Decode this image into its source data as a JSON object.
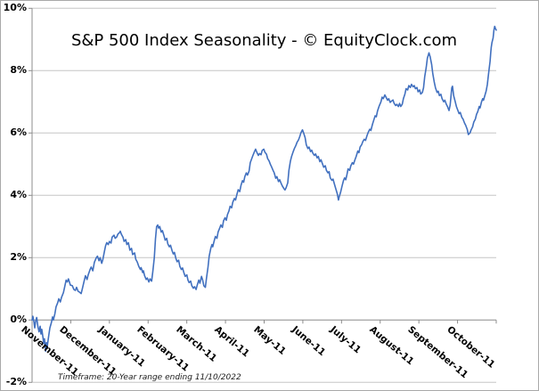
{
  "title": "S&P 500 Index Seasonality - © EquityClock.com",
  "footer": "Timeframe: 20-Year range ending 11/10/2022",
  "chart_data": {
    "type": "line",
    "title": "S&P 500 Index Seasonality - © EquityClock.com",
    "footnote": "Timeframe: 20-Year range ending 11/10/2022",
    "legend": "none",
    "grid": "horizontal",
    "style": {
      "line_color": "#4170bf",
      "grid_color": "#c6c6c6",
      "axis_color": "#8c8c8c",
      "text_color": "#000000",
      "background": "#ffffff"
    },
    "x_axis": {
      "unit": "month (x = months elapsed since Nov 1)",
      "range": [
        0,
        12
      ],
      "labels": [
        "November-11",
        "December-11",
        "January-11",
        "February-11",
        "March-11",
        "April-11",
        "May-11",
        "June-11",
        "July-11",
        "August-11",
        "September-11",
        "October-11"
      ],
      "label_rotation_deg": 40
    },
    "y_axis": {
      "unit": "%",
      "range": [
        -2,
        10
      ],
      "tick_values": [
        10,
        8,
        6,
        4,
        2,
        0,
        -2
      ],
      "tick_labels": [
        "10%",
        "8%",
        "6%",
        "4%",
        "2%",
        "0%",
        "-2%"
      ]
    },
    "points": [
      [
        0.0,
        0.0
      ],
      [
        0.02,
        0.12
      ],
      [
        0.05,
        -0.08
      ],
      [
        0.07,
        -0.25
      ],
      [
        0.09,
        -0.05
      ],
      [
        0.12,
        0.08
      ],
      [
        0.15,
        -0.2
      ],
      [
        0.18,
        -0.38
      ],
      [
        0.21,
        -0.2
      ],
      [
        0.23,
        -0.45
      ],
      [
        0.25,
        -0.3
      ],
      [
        0.28,
        -0.55
      ],
      [
        0.3,
        -0.75
      ],
      [
        0.32,
        -0.6
      ],
      [
        0.35,
        -1.0
      ],
      [
        0.37,
        -0.72
      ],
      [
        0.39,
        -0.88
      ],
      [
        0.43,
        -0.5
      ],
      [
        0.46,
        -0.25
      ],
      [
        0.5,
        -0.08
      ],
      [
        0.53,
        0.1
      ],
      [
        0.55,
        0.0
      ],
      [
        0.59,
        0.2
      ],
      [
        0.62,
        0.42
      ],
      [
        0.66,
        0.55
      ],
      [
        0.69,
        0.68
      ],
      [
        0.73,
        0.58
      ],
      [
        0.76,
        0.72
      ],
      [
        0.81,
        0.88
      ],
      [
        0.84,
        1.05
      ],
      [
        0.88,
        1.28
      ],
      [
        0.91,
        1.22
      ],
      [
        0.94,
        1.32
      ],
      [
        0.99,
        1.12
      ],
      [
        1.04,
        1.1
      ],
      [
        1.08,
        0.98
      ],
      [
        1.12,
        0.95
      ],
      [
        1.15,
        1.05
      ],
      [
        1.19,
        0.92
      ],
      [
        1.22,
        0.9
      ],
      [
        1.27,
        0.85
      ],
      [
        1.3,
        1.0
      ],
      [
        1.34,
        1.22
      ],
      [
        1.38,
        1.42
      ],
      [
        1.42,
        1.3
      ],
      [
        1.45,
        1.45
      ],
      [
        1.5,
        1.62
      ],
      [
        1.53,
        1.7
      ],
      [
        1.57,
        1.58
      ],
      [
        1.61,
        1.85
      ],
      [
        1.66,
        2.0
      ],
      [
        1.69,
        2.05
      ],
      [
        1.73,
        1.9
      ],
      [
        1.76,
        2.0
      ],
      [
        1.8,
        1.82
      ],
      [
        1.83,
        1.95
      ],
      [
        1.87,
        2.2
      ],
      [
        1.9,
        2.38
      ],
      [
        1.93,
        2.48
      ],
      [
        1.97,
        2.42
      ],
      [
        2.0,
        2.52
      ],
      [
        2.04,
        2.47
      ],
      [
        2.07,
        2.66
      ],
      [
        2.12,
        2.72
      ],
      [
        2.15,
        2.62
      ],
      [
        2.19,
        2.67
      ],
      [
        2.22,
        2.76
      ],
      [
        2.26,
        2.8
      ],
      [
        2.28,
        2.85
      ],
      [
        2.31,
        2.75
      ],
      [
        2.35,
        2.66
      ],
      [
        2.38,
        2.52
      ],
      [
        2.42,
        2.58
      ],
      [
        2.45,
        2.42
      ],
      [
        2.49,
        2.48
      ],
      [
        2.53,
        2.24
      ],
      [
        2.57,
        2.3
      ],
      [
        2.6,
        2.1
      ],
      [
        2.65,
        2.15
      ],
      [
        2.68,
        1.95
      ],
      [
        2.72,
        1.86
      ],
      [
        2.76,
        1.72
      ],
      [
        2.8,
        1.62
      ],
      [
        2.82,
        1.68
      ],
      [
        2.86,
        1.52
      ],
      [
        2.88,
        1.58
      ],
      [
        2.91,
        1.42
      ],
      [
        2.95,
        1.3
      ],
      [
        2.98,
        1.35
      ],
      [
        3.02,
        1.22
      ],
      [
        3.05,
        1.32
      ],
      [
        3.09,
        1.25
      ],
      [
        3.12,
        1.55
      ],
      [
        3.16,
        2.0
      ],
      [
        3.19,
        2.6
      ],
      [
        3.22,
        3.0
      ],
      [
        3.25,
        3.05
      ],
      [
        3.27,
        2.95
      ],
      [
        3.3,
        3.0
      ],
      [
        3.34,
        2.82
      ],
      [
        3.37,
        2.87
      ],
      [
        3.41,
        2.7
      ],
      [
        3.44,
        2.56
      ],
      [
        3.48,
        2.62
      ],
      [
        3.51,
        2.44
      ],
      [
        3.55,
        2.35
      ],
      [
        3.58,
        2.4
      ],
      [
        3.62,
        2.22
      ],
      [
        3.65,
        2.12
      ],
      [
        3.68,
        2.17
      ],
      [
        3.72,
        1.97
      ],
      [
        3.75,
        1.87
      ],
      [
        3.79,
        1.92
      ],
      [
        3.82,
        1.72
      ],
      [
        3.86,
        1.62
      ],
      [
        3.89,
        1.67
      ],
      [
        3.93,
        1.5
      ],
      [
        3.96,
        1.4
      ],
      [
        4.0,
        1.45
      ],
      [
        4.03,
        1.28
      ],
      [
        4.06,
        1.2
      ],
      [
        4.1,
        1.25
      ],
      [
        4.13,
        1.1
      ],
      [
        4.17,
        1.02
      ],
      [
        4.2,
        1.07
      ],
      [
        4.24,
        0.98
      ],
      [
        4.27,
        1.12
      ],
      [
        4.31,
        1.28
      ],
      [
        4.34,
        1.18
      ],
      [
        4.38,
        1.4
      ],
      [
        4.41,
        1.28
      ],
      [
        4.44,
        1.1
      ],
      [
        4.48,
        1.05
      ],
      [
        4.51,
        1.35
      ],
      [
        4.55,
        1.7
      ],
      [
        4.58,
        2.05
      ],
      [
        4.62,
        2.3
      ],
      [
        4.65,
        2.42
      ],
      [
        4.67,
        2.35
      ],
      [
        4.71,
        2.55
      ],
      [
        4.74,
        2.68
      ],
      [
        4.78,
        2.62
      ],
      [
        4.81,
        2.82
      ],
      [
        4.85,
        2.95
      ],
      [
        4.88,
        3.05
      ],
      [
        4.92,
        2.97
      ],
      [
        4.95,
        3.18
      ],
      [
        4.99,
        3.28
      ],
      [
        5.02,
        3.2
      ],
      [
        5.05,
        3.38
      ],
      [
        5.09,
        3.5
      ],
      [
        5.12,
        3.65
      ],
      [
        5.16,
        3.6
      ],
      [
        5.19,
        3.78
      ],
      [
        5.23,
        3.9
      ],
      [
        5.26,
        3.85
      ],
      [
        5.3,
        4.05
      ],
      [
        5.33,
        4.18
      ],
      [
        5.37,
        4.12
      ],
      [
        5.4,
        4.32
      ],
      [
        5.44,
        4.47
      ],
      [
        5.47,
        4.42
      ],
      [
        5.5,
        4.6
      ],
      [
        5.54,
        4.72
      ],
      [
        5.57,
        4.65
      ],
      [
        5.61,
        4.78
      ],
      [
        5.64,
        5.05
      ],
      [
        5.68,
        5.18
      ],
      [
        5.71,
        5.28
      ],
      [
        5.75,
        5.4
      ],
      [
        5.78,
        5.48
      ],
      [
        5.81,
        5.38
      ],
      [
        5.85,
        5.28
      ],
      [
        5.88,
        5.34
      ],
      [
        5.92,
        5.3
      ],
      [
        5.95,
        5.44
      ],
      [
        5.99,
        5.48
      ],
      [
        6.02,
        5.38
      ],
      [
        6.06,
        5.32
      ],
      [
        6.09,
        5.18
      ],
      [
        6.13,
        5.1
      ],
      [
        6.16,
        5.0
      ],
      [
        6.19,
        4.92
      ],
      [
        6.23,
        4.8
      ],
      [
        6.26,
        4.72
      ],
      [
        6.3,
        4.55
      ],
      [
        6.33,
        4.6
      ],
      [
        6.37,
        4.44
      ],
      [
        6.4,
        4.5
      ],
      [
        6.44,
        4.38
      ],
      [
        6.47,
        4.3
      ],
      [
        6.51,
        4.22
      ],
      [
        6.54,
        4.17
      ],
      [
        6.57,
        4.25
      ],
      [
        6.61,
        4.4
      ],
      [
        6.64,
        4.8
      ],
      [
        6.68,
        5.1
      ],
      [
        6.71,
        5.25
      ],
      [
        6.75,
        5.4
      ],
      [
        6.78,
        5.5
      ],
      [
        6.82,
        5.6
      ],
      [
        6.85,
        5.7
      ],
      [
        6.89,
        5.78
      ],
      [
        6.92,
        5.88
      ],
      [
        6.95,
        6.0
      ],
      [
        6.99,
        6.1
      ],
      [
        7.02,
        6.0
      ],
      [
        7.06,
        5.85
      ],
      [
        7.09,
        5.62
      ],
      [
        7.13,
        5.5
      ],
      [
        7.16,
        5.55
      ],
      [
        7.2,
        5.4
      ],
      [
        7.23,
        5.45
      ],
      [
        7.26,
        5.35
      ],
      [
        7.3,
        5.28
      ],
      [
        7.33,
        5.33
      ],
      [
        7.37,
        5.2
      ],
      [
        7.4,
        5.25
      ],
      [
        7.44,
        5.08
      ],
      [
        7.47,
        5.14
      ],
      [
        7.51,
        5.0
      ],
      [
        7.54,
        4.9
      ],
      [
        7.58,
        4.95
      ],
      [
        7.61,
        4.8
      ],
      [
        7.65,
        4.72
      ],
      [
        7.68,
        4.76
      ],
      [
        7.71,
        4.56
      ],
      [
        7.75,
        4.48
      ],
      [
        7.78,
        4.52
      ],
      [
        7.82,
        4.35
      ],
      [
        7.85,
        4.22
      ],
      [
        7.89,
        4.05
      ],
      [
        7.92,
        3.85
      ],
      [
        7.94,
        3.95
      ],
      [
        7.98,
        4.12
      ],
      [
        8.01,
        4.28
      ],
      [
        8.05,
        4.47
      ],
      [
        8.08,
        4.56
      ],
      [
        8.11,
        4.5
      ],
      [
        8.14,
        4.66
      ],
      [
        8.17,
        4.85
      ],
      [
        8.21,
        4.8
      ],
      [
        8.24,
        4.95
      ],
      [
        8.28,
        5.05
      ],
      [
        8.31,
        5.0
      ],
      [
        8.35,
        5.15
      ],
      [
        8.38,
        5.25
      ],
      [
        8.42,
        5.42
      ],
      [
        8.45,
        5.37
      ],
      [
        8.48,
        5.55
      ],
      [
        8.52,
        5.62
      ],
      [
        8.55,
        5.72
      ],
      [
        8.59,
        5.8
      ],
      [
        8.62,
        5.76
      ],
      [
        8.66,
        5.92
      ],
      [
        8.69,
        6.02
      ],
      [
        8.73,
        6.12
      ],
      [
        8.76,
        6.08
      ],
      [
        8.8,
        6.28
      ],
      [
        8.83,
        6.4
      ],
      [
        8.87,
        6.55
      ],
      [
        8.9,
        6.52
      ],
      [
        8.93,
        6.7
      ],
      [
        8.97,
        6.85
      ],
      [
        9.02,
        7.0
      ],
      [
        9.05,
        7.15
      ],
      [
        9.08,
        7.1
      ],
      [
        9.12,
        7.22
      ],
      [
        9.15,
        7.15
      ],
      [
        9.19,
        7.05
      ],
      [
        9.22,
        7.1
      ],
      [
        9.26,
        6.98
      ],
      [
        9.29,
        7.02
      ],
      [
        9.33,
        7.06
      ],
      [
        9.36,
        6.95
      ],
      [
        9.4,
        6.88
      ],
      [
        9.43,
        6.92
      ],
      [
        9.47,
        6.85
      ],
      [
        9.5,
        6.95
      ],
      [
        9.53,
        6.85
      ],
      [
        9.57,
        6.92
      ],
      [
        9.6,
        7.1
      ],
      [
        9.64,
        7.25
      ],
      [
        9.67,
        7.42
      ],
      [
        9.71,
        7.38
      ],
      [
        9.74,
        7.52
      ],
      [
        9.78,
        7.46
      ],
      [
        9.81,
        7.56
      ],
      [
        9.85,
        7.48
      ],
      [
        9.88,
        7.52
      ],
      [
        9.91,
        7.42
      ],
      [
        9.95,
        7.46
      ],
      [
        9.98,
        7.32
      ],
      [
        10.02,
        7.38
      ],
      [
        10.05,
        7.25
      ],
      [
        10.09,
        7.3
      ],
      [
        10.12,
        7.45
      ],
      [
        10.15,
        7.8
      ],
      [
        10.19,
        8.1
      ],
      [
        10.22,
        8.4
      ],
      [
        10.26,
        8.57
      ],
      [
        10.29,
        8.45
      ],
      [
        10.33,
        8.2
      ],
      [
        10.36,
        7.9
      ],
      [
        10.4,
        7.62
      ],
      [
        10.43,
        7.45
      ],
      [
        10.47,
        7.3
      ],
      [
        10.5,
        7.34
      ],
      [
        10.53,
        7.2
      ],
      [
        10.57,
        7.24
      ],
      [
        10.6,
        7.1
      ],
      [
        10.64,
        7.0
      ],
      [
        10.67,
        7.05
      ],
      [
        10.71,
        6.92
      ],
      [
        10.74,
        6.85
      ],
      [
        10.78,
        6.72
      ],
      [
        10.81,
        6.9
      ],
      [
        10.85,
        7.45
      ],
      [
        10.87,
        7.5
      ],
      [
        10.9,
        7.2
      ],
      [
        10.94,
        7.0
      ],
      [
        10.97,
        6.85
      ],
      [
        11.01,
        6.72
      ],
      [
        11.04,
        6.62
      ],
      [
        11.07,
        6.66
      ],
      [
        11.11,
        6.5
      ],
      [
        11.14,
        6.45
      ],
      [
        11.18,
        6.32
      ],
      [
        11.21,
        6.25
      ],
      [
        11.25,
        6.12
      ],
      [
        11.28,
        5.95
      ],
      [
        11.32,
        6.0
      ],
      [
        11.35,
        6.1
      ],
      [
        11.39,
        6.2
      ],
      [
        11.42,
        6.35
      ],
      [
        11.46,
        6.45
      ],
      [
        11.49,
        6.6
      ],
      [
        11.52,
        6.68
      ],
      [
        11.56,
        6.85
      ],
      [
        11.58,
        6.8
      ],
      [
        11.62,
        7.0
      ],
      [
        11.65,
        7.1
      ],
      [
        11.67,
        7.05
      ],
      [
        11.71,
        7.22
      ],
      [
        11.74,
        7.35
      ],
      [
        11.77,
        7.55
      ],
      [
        11.79,
        7.78
      ],
      [
        11.81,
        8.0
      ],
      [
        11.84,
        8.3
      ],
      [
        11.86,
        8.6
      ],
      [
        11.87,
        8.75
      ],
      [
        11.89,
        8.9
      ],
      [
        11.92,
        9.05
      ],
      [
        11.94,
        9.3
      ],
      [
        11.96,
        9.42
      ],
      [
        11.98,
        9.35
      ],
      [
        12.0,
        9.3
      ]
    ]
  }
}
